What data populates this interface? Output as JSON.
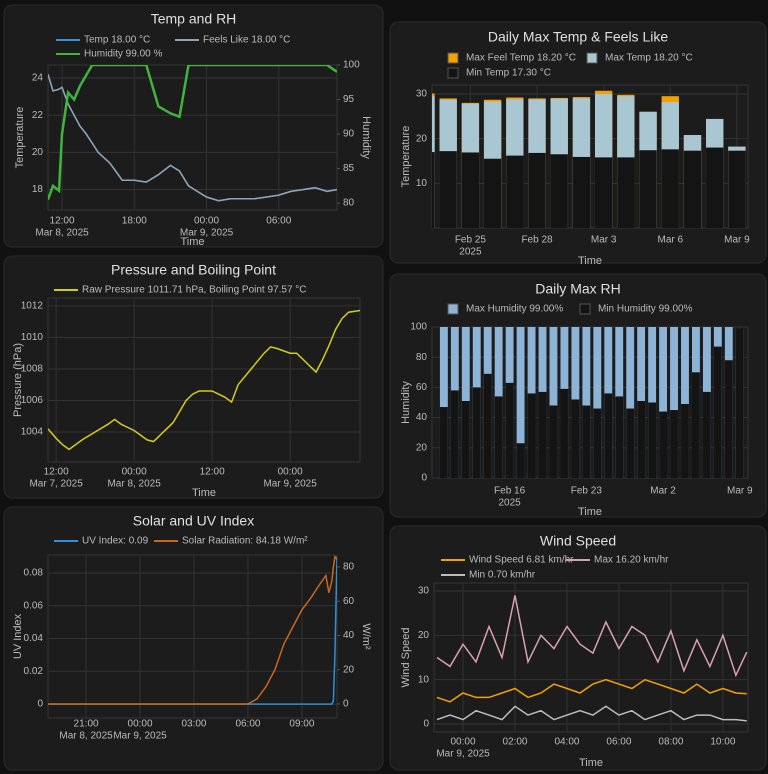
{
  "chart_data": [
    {
      "type": "line",
      "title": "Temp and RH",
      "xlabel": "Time",
      "ylabel": "Temperature",
      "y2label": "Humidity",
      "x": [
        "2025-03-08T10:50",
        "2025-03-08T11:15",
        "2025-03-08T11:45",
        "2025-03-08T12:00",
        "2025-03-08T12:30",
        "2025-03-08T13:00",
        "2025-03-08T13:30",
        "2025-03-08T14:00",
        "2025-03-08T14:30",
        "2025-03-08T15:00",
        "2025-03-08T16:00",
        "2025-03-08T17:00",
        "2025-03-08T18:00",
        "2025-03-08T19:00",
        "2025-03-08T20:00",
        "2025-03-08T21:00",
        "2025-03-08T21:45",
        "2025-03-08T22:30",
        "2025-03-08T23:00",
        "2025-03-09T00:00",
        "2025-03-09T01:00",
        "2025-03-09T02:00",
        "2025-03-09T03:00",
        "2025-03-09T04:00",
        "2025-03-09T05:00",
        "2025-03-09T06:00",
        "2025-03-09T07:00",
        "2025-03-09T08:00",
        "2025-03-09T09:00",
        "2025-03-09T10:00",
        "2025-03-09T10:50"
      ],
      "series": [
        {
          "name": "Temp 18.00 °C",
          "color": "#3a8fd8",
          "values": [
            24.2,
            23.3,
            23.4,
            23.5,
            22.6,
            22.0,
            21.4,
            21.0,
            20.5,
            20.0,
            19.4,
            18.5,
            18.5,
            18.4,
            18.8,
            19.3,
            19.0,
            18.2,
            18.0,
            17.6,
            17.4,
            17.5,
            17.5,
            17.5,
            17.6,
            17.7,
            17.9,
            18.0,
            18.1,
            17.9,
            18.0
          ]
        },
        {
          "name": "Feels Like 18.00 °C",
          "color": "#8fa3b3",
          "values": [
            24.2,
            23.3,
            23.4,
            23.5,
            22.6,
            22.0,
            21.4,
            21.0,
            20.5,
            20.0,
            19.4,
            18.5,
            18.5,
            18.4,
            18.8,
            19.3,
            19.0,
            18.2,
            18.0,
            17.6,
            17.4,
            17.5,
            17.5,
            17.5,
            17.6,
            17.7,
            17.9,
            18.0,
            18.1,
            17.9,
            18.0
          ]
        },
        {
          "name": "Humidity 99.00 %",
          "color": "#3fb43f",
          "axis": "y2",
          "values": [
            80.5,
            82.5,
            81.8,
            90,
            96,
            95,
            97,
            98.5,
            100,
            100,
            100,
            100,
            100,
            100,
            94,
            93,
            92.5,
            100,
            100,
            100,
            100,
            100,
            100,
            100,
            100,
            100,
            100,
            100,
            100,
            100,
            99
          ]
        }
      ],
      "xlim": [
        "2025-03-08T10:50",
        "2025-03-09T10:50"
      ],
      "xticks": [
        {
          "value": "2025-03-08T12:00",
          "label": "12:00",
          "sublabel": "Mar 8, 2025"
        },
        {
          "value": "2025-03-08T18:00",
          "label": "18:00"
        },
        {
          "value": "2025-03-09T00:00",
          "label": "00:00",
          "sublabel": "Mar 9, 2025"
        },
        {
          "value": "2025-03-09T06:00",
          "label": "06:00"
        }
      ],
      "ylim": [
        16.9,
        24.7
      ],
      "yticks": [
        18,
        20,
        22,
        24
      ],
      "y2lim": [
        79,
        100
      ],
      "y2ticks": [
        80,
        85,
        90,
        95,
        100
      ],
      "grid": true
    },
    {
      "type": "line",
      "title": "Pressure and Boiling Point",
      "xlabel": "Time",
      "ylabel": "Pressure (hPa)",
      "x": [
        "2025-03-07T10:45",
        "2025-03-07T12:00",
        "2025-03-07T13:00",
        "2025-03-07T14:00",
        "2025-03-07T16:00",
        "2025-03-07T18:00",
        "2025-03-07T20:00",
        "2025-03-07T21:00",
        "2025-03-07T22:00",
        "2025-03-08T00:00",
        "2025-03-08T02:00",
        "2025-03-08T03:00",
        "2025-03-08T04:00",
        "2025-03-08T06:00",
        "2025-03-08T08:00",
        "2025-03-08T09:00",
        "2025-03-08T10:00",
        "2025-03-08T12:00",
        "2025-03-08T14:00",
        "2025-03-08T15:00",
        "2025-03-08T16:00",
        "2025-03-08T18:00",
        "2025-03-08T20:00",
        "2025-03-08T21:00",
        "2025-03-08T22:00",
        "2025-03-09T00:00",
        "2025-03-09T01:00",
        "2025-03-09T02:00",
        "2025-03-09T03:00",
        "2025-03-09T04:00",
        "2025-03-09T05:00",
        "2025-03-09T06:00",
        "2025-03-09T07:00",
        "2025-03-09T08:00",
        "2025-03-09T09:00",
        "2025-03-09T10:45"
      ],
      "series": [
        {
          "name": "Raw Pressure 1011.71 hPa, Boiling Point 97.57 °C",
          "color": "#d4cc1a",
          "values": [
            1004.2,
            1003.6,
            1003.2,
            1002.9,
            1003.5,
            1004.0,
            1004.5,
            1004.8,
            1004.5,
            1004.1,
            1003.5,
            1003.4,
            1003.8,
            1004.6,
            1006.0,
            1006.4,
            1006.6,
            1006.6,
            1006.2,
            1005.9,
            1007.0,
            1008.0,
            1009.0,
            1009.4,
            1009.3,
            1009.0,
            1009.0,
            1008.6,
            1008.2,
            1007.8,
            1008.6,
            1009.5,
            1010.5,
            1011.2,
            1011.6,
            1011.71
          ]
        }
      ],
      "xlim": [
        "2025-03-07T10:45",
        "2025-03-09T10:45"
      ],
      "xticks": [
        {
          "value": "2025-03-07T12:00",
          "label": "12:00",
          "sublabel": "Mar 7, 2025"
        },
        {
          "value": "2025-03-08T00:00",
          "label": "00:00",
          "sublabel": "Mar 8, 2025"
        },
        {
          "value": "2025-03-08T12:00",
          "label": "12:00"
        },
        {
          "value": "2025-03-09T00:00",
          "label": "00:00",
          "sublabel": "Mar 9, 2025"
        }
      ],
      "ylim": [
        1002.1,
        1012.5
      ],
      "yticks": [
        1004,
        1006,
        1008,
        1010,
        1012
      ],
      "grid": true
    },
    {
      "type": "line",
      "title": "Solar and UV Index",
      "ylabel": "UV Index",
      "y2label": "W/m²",
      "x": [
        "2025-03-08T18:53",
        "2025-03-09T06:00",
        "2025-03-09T06:30",
        "2025-03-09T07:00",
        "2025-03-09T07:30",
        "2025-03-09T08:00",
        "2025-03-09T08:30",
        "2025-03-09T09:00",
        "2025-03-09T09:30",
        "2025-03-09T10:00",
        "2025-03-09T10:20",
        "2025-03-09T10:30",
        "2025-03-09T10:40",
        "2025-03-09T10:45",
        "2025-03-09T10:50",
        "2025-03-09T10:57"
      ],
      "series": [
        {
          "name": "UV Index: 0.09",
          "color": "#2f8fd8",
          "values": [
            0,
            0,
            0,
            0,
            0,
            0,
            0,
            0,
            0,
            0,
            0,
            0,
            0,
            0.002,
            0.03,
            0.09
          ]
        },
        {
          "name": "Solar Radiation: 84.18 W/m²",
          "color": "#c8671e",
          "axis": "y2",
          "values": [
            0,
            0,
            3,
            10,
            20,
            35,
            45,
            55,
            62,
            70,
            75,
            65,
            72,
            80,
            86,
            84.18
          ]
        }
      ],
      "xlim": [
        "2025-03-08T18:53",
        "2025-03-09T10:57"
      ],
      "xticks": [
        {
          "value": "2025-03-08T21:00",
          "label": "21:00",
          "sublabel": "Mar 8, 2025"
        },
        {
          "value": "2025-03-09T00:00",
          "label": "00:00",
          "sublabel": "Mar 9, 2025"
        },
        {
          "value": "2025-03-09T03:00",
          "label": "03:00"
        },
        {
          "value": "2025-03-09T06:00",
          "label": "06:00"
        },
        {
          "value": "2025-03-09T09:00",
          "label": "09:00"
        }
      ],
      "ylim": [
        -0.0085,
        0.091
      ],
      "yticks": [
        0,
        0.02,
        0.04,
        0.06,
        0.08
      ],
      "y2lim": [
        -8.2,
        87
      ],
      "y2ticks": [
        0,
        20,
        40,
        60,
        80
      ],
      "grid": true
    },
    {
      "type": "bar",
      "title": "Daily Max Temp & Feels Like",
      "xlabel": "Time",
      "ylabel": "Temperature",
      "x": [
        "2025-02-23",
        "2025-02-24",
        "2025-02-25",
        "2025-02-26",
        "2025-02-27",
        "2025-02-28",
        "2025-03-01",
        "2025-03-02",
        "2025-03-03",
        "2025-03-04",
        "2025-03-05",
        "2025-03-06",
        "2025-03-07",
        "2025-03-08",
        "2025-03-09"
      ],
      "series": [
        {
          "name": "Max Feel Temp 18.20 °C",
          "color": "#f5a000",
          "values": [
            30.1,
            29.0,
            28.0,
            28.7,
            29.2,
            29.0,
            29.1,
            29.3,
            30.7,
            29.8,
            26.0,
            29.5,
            20.8,
            24.4,
            18.2
          ]
        },
        {
          "name": "Max Temp 18.20 °C",
          "color": "#a9c6d3",
          "values": [
            29.5,
            28.7,
            27.8,
            28.3,
            28.8,
            28.8,
            28.9,
            29.0,
            30.0,
            29.5,
            26.0,
            28.2,
            20.8,
            24.4,
            18.2
          ]
        },
        {
          "name": "Min Temp 17.30 °C",
          "color": "#141414",
          "values": [
            17.0,
            17.2,
            16.9,
            15.5,
            16.2,
            16.8,
            16.5,
            15.9,
            15.8,
            15.8,
            17.4,
            17.6,
            17.3,
            18.0,
            17.3
          ]
        }
      ],
      "xlim": [
        "2025-02-23T06:30",
        "2025-03-09T12:00"
      ],
      "xticks": [
        {
          "value": "2025-02-25",
          "label": "Feb 25",
          "sublabel": "2025"
        },
        {
          "value": "2025-02-28",
          "label": "Feb 28"
        },
        {
          "value": "2025-03-03",
          "label": "Mar 3"
        },
        {
          "value": "2025-03-06",
          "label": "Mar 6"
        },
        {
          "value": "2025-03-09",
          "label": "Mar 9"
        }
      ],
      "ylim": [
        0,
        32
      ],
      "yticks": [
        10,
        20,
        30
      ],
      "grid": true
    },
    {
      "type": "bar",
      "title": "Daily Max RH",
      "xlabel": "Time",
      "ylabel": "Humidity",
      "x": [
        "2025-02-10",
        "2025-02-11",
        "2025-02-12",
        "2025-02-13",
        "2025-02-14",
        "2025-02-15",
        "2025-02-16",
        "2025-02-17",
        "2025-02-18",
        "2025-02-19",
        "2025-02-20",
        "2025-02-21",
        "2025-02-22",
        "2025-02-23",
        "2025-02-24",
        "2025-02-25",
        "2025-02-26",
        "2025-02-27",
        "2025-02-28",
        "2025-03-01",
        "2025-03-02",
        "2025-03-03",
        "2025-03-04",
        "2025-03-05",
        "2025-03-06",
        "2025-03-07",
        "2025-03-08",
        "2025-03-09"
      ],
      "series": [
        {
          "name": "Max Humidity 99.00%",
          "color": "#8db3d6",
          "values": [
            100,
            100,
            100,
            100,
            100,
            100,
            100,
            100,
            100,
            100,
            100,
            100,
            100,
            100,
            100,
            100,
            100,
            100,
            100,
            100,
            100,
            100,
            100,
            100,
            100,
            100,
            100,
            99
          ]
        },
        {
          "name": "Min Humidity 99.00%",
          "color": "#141414",
          "values": [
            47,
            58,
            51,
            60,
            69,
            54,
            63,
            23,
            56,
            57,
            48,
            59,
            52,
            48,
            46,
            56,
            54,
            46,
            51,
            50,
            44,
            45,
            49,
            70,
            57,
            87,
            78,
            99
          ]
        }
      ],
      "xlim": [
        "2025-02-08T22:00",
        "2025-03-09T18:00"
      ],
      "xticks": [
        {
          "value": "2025-02-16",
          "label": "Feb 16",
          "sublabel": "2025"
        },
        {
          "value": "2025-02-23",
          "label": "Feb 23"
        },
        {
          "value": "2025-03-02",
          "label": "Mar 2"
        },
        {
          "value": "2025-03-09",
          "label": "Mar 9"
        }
      ],
      "ylim": [
        0,
        100
      ],
      "yticks": [
        0,
        20,
        40,
        60,
        80,
        100
      ],
      "grid": true
    },
    {
      "type": "line",
      "title": "Wind Speed",
      "xlabel": "Time",
      "ylabel": "Wind Speed",
      "x": [
        "2025-03-08T23:00",
        "2025-03-08T23:30",
        "2025-03-09T00:00",
        "2025-03-09T00:30",
        "2025-03-09T01:00",
        "2025-03-09T01:30",
        "2025-03-09T02:00",
        "2025-03-09T02:30",
        "2025-03-09T03:00",
        "2025-03-09T03:30",
        "2025-03-09T04:00",
        "2025-03-09T04:30",
        "2025-03-09T05:00",
        "2025-03-09T05:30",
        "2025-03-09T06:00",
        "2025-03-09T06:30",
        "2025-03-09T07:00",
        "2025-03-09T07:30",
        "2025-03-09T08:00",
        "2025-03-09T08:30",
        "2025-03-09T09:00",
        "2025-03-09T09:30",
        "2025-03-09T10:00",
        "2025-03-09T10:30",
        "2025-03-09T10:55"
      ],
      "series": [
        {
          "name": "Wind Speed 6.81 km/hr",
          "color": "#f5a000",
          "values": [
            6,
            5,
            7,
            6,
            6,
            7,
            8,
            6,
            7,
            9,
            8,
            7,
            9,
            10,
            9,
            8,
            10,
            9,
            8,
            7,
            9,
            7,
            8,
            7,
            6.81
          ]
        },
        {
          "name": "Max 16.20 km/hr",
          "color": "#d9a0b0",
          "values": [
            15,
            13,
            18,
            14,
            22,
            15,
            29,
            14,
            20,
            17,
            22,
            18,
            16,
            23,
            17,
            22,
            20,
            14,
            21,
            12,
            19,
            13,
            20,
            11,
            16.2
          ]
        },
        {
          "name": "Min 0.70 km/hr",
          "color": "#bdbdbd",
          "values": [
            1,
            2,
            1,
            3,
            2,
            1,
            4,
            2,
            3,
            1,
            2,
            3,
            2,
            4,
            2,
            3,
            1,
            2,
            3,
            1,
            2,
            2,
            1,
            1,
            0.7
          ]
        }
      ],
      "xlim": [
        "2025-03-08T22:53",
        "2025-03-09T10:58"
      ],
      "xticks": [
        {
          "value": "2025-03-09T00:00",
          "label": "00:00",
          "sublabel": "Mar 9, 2025"
        },
        {
          "value": "2025-03-09T02:00",
          "label": "02:00"
        },
        {
          "value": "2025-03-09T04:00",
          "label": "04:00"
        },
        {
          "value": "2025-03-09T06:00",
          "label": "06:00"
        },
        {
          "value": "2025-03-09T08:00",
          "label": "08:00"
        },
        {
          "value": "2025-03-09T10:00",
          "label": "10:00"
        }
      ],
      "ylim": [
        -1.8,
        31.8
      ],
      "yticks": [
        0,
        10,
        20,
        30
      ],
      "grid": true
    }
  ]
}
